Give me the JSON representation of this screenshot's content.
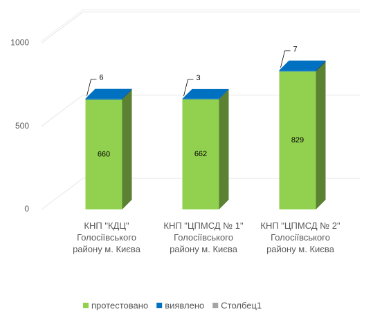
{
  "chart_data": {
    "type": "bar3d_stacked",
    "categories": [
      "КНП \"КДЦ\" Голосіївського району м. Києва",
      "КНП \"ЦПМСД № 1\" Голосіївського району м. Києва",
      "КНП \"ЦПМСД № 2\" Голосіївського району м. Києва"
    ],
    "series": [
      {
        "name": "протестовано",
        "color": "#92d050",
        "values": [
          660,
          662,
          829
        ]
      },
      {
        "name": "виявлено",
        "color": "#0070c0",
        "values": [
          6,
          3,
          7
        ]
      },
      {
        "name": "Столбец1",
        "color": "#a5a5a5",
        "values": [
          null,
          null,
          null
        ]
      }
    ],
    "ylim": [
      0,
      1200
    ],
    "yticks": [
      0,
      500,
      1000
    ],
    "grid": true,
    "legend": "bottom"
  }
}
